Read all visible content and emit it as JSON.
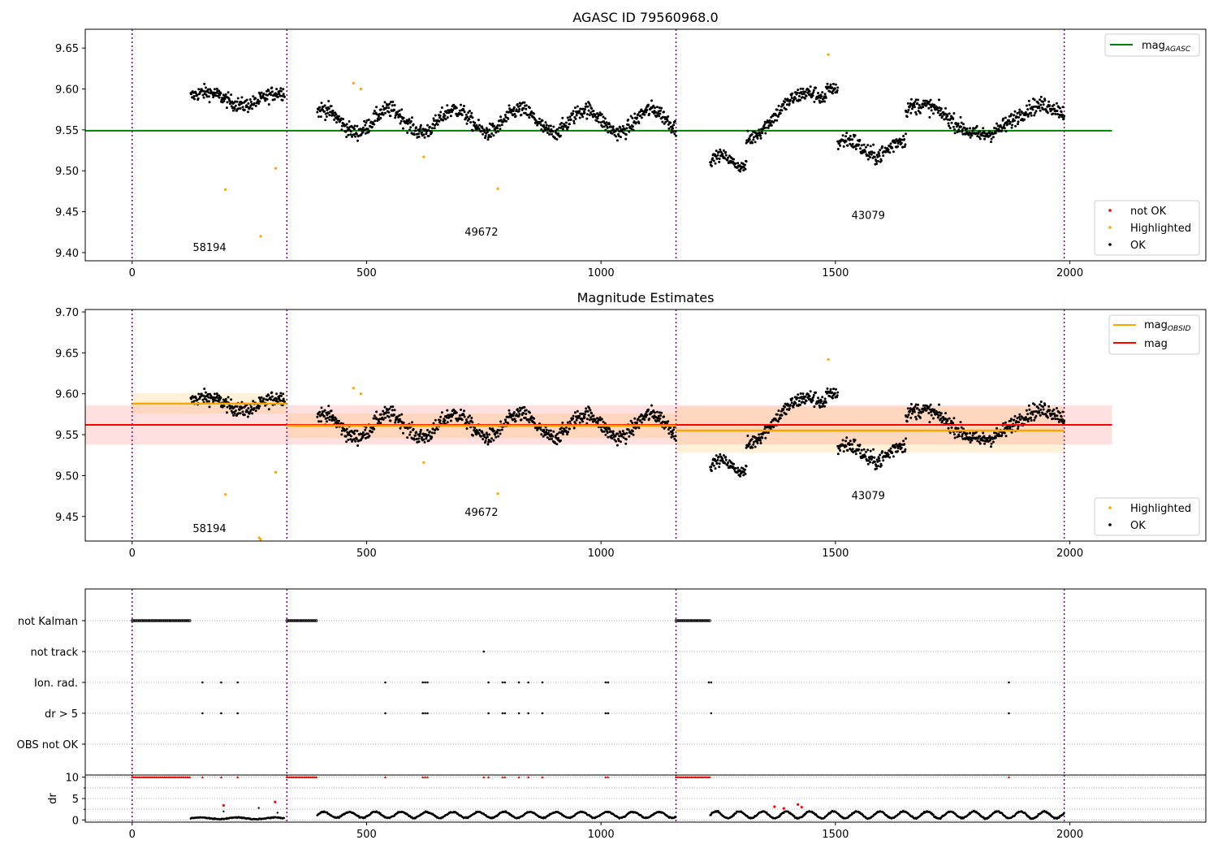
{
  "chart_data": [
    {
      "type": "scatter",
      "title": "AGASC ID 79560968.0",
      "xlim": [
        -100,
        2290
      ],
      "ylim": [
        9.39,
        9.673
      ],
      "x_ticks": [
        0,
        500,
        1000,
        1500,
        2000
      ],
      "x_tick_labels": [
        "0",
        "500",
        "1000",
        "1500",
        "2000"
      ],
      "y_ticks": [
        9.4,
        9.45,
        9.5,
        9.55,
        9.6,
        9.65
      ],
      "y_tick_labels": [
        "9.40",
        "9.45",
        "9.50",
        "9.55",
        "9.60",
        "9.65"
      ],
      "obsid_boundaries": [
        0,
        330,
        1160,
        1988
      ],
      "obsid_labels": [
        {
          "text": "58194",
          "x": 165,
          "y": 9.402
        },
        {
          "text": "49672",
          "x": 745,
          "y": 9.421
        },
        {
          "text": "43079",
          "x": 1570,
          "y": 9.441
        }
      ],
      "lines": [
        {
          "name": "mag_AGASC",
          "y": 9.549,
          "x_range": [
            -100,
            2090
          ],
          "color": "#008000"
        }
      ],
      "ok_segments": [
        {
          "x_start": 125,
          "x_end": 325,
          "base": 9.588,
          "amp": 0.008,
          "period": 160,
          "phase": 0.3,
          "noise": 0.011
        },
        {
          "x_start": 395,
          "x_end": 1160,
          "base": 9.561,
          "amp": 0.014,
          "period": 140,
          "phase": 1.0,
          "noise": 0.012
        },
        {
          "x_start": 1233,
          "x_end": 1310,
          "base": 9.512,
          "amp": 0.007,
          "period": 90,
          "phase": 0.0,
          "noise": 0.008
        },
        {
          "x_start": 1310,
          "x_end": 1480,
          "base": 9.565,
          "amp": 0.03,
          "period": 300,
          "phase": -1.2,
          "noise": 0.012
        },
        {
          "x_start": 1480,
          "x_end": 1505,
          "base": 9.6,
          "amp": 0.0,
          "period": 100,
          "phase": 0.0,
          "noise": 0.008
        },
        {
          "x_start": 1505,
          "x_end": 1650,
          "base": 9.528,
          "amp": 0.01,
          "period": 120,
          "phase": 0.5,
          "noise": 0.013
        },
        {
          "x_start": 1650,
          "x_end": 1988,
          "base": 9.562,
          "amp": 0.018,
          "period": 260,
          "phase": 0.8,
          "noise": 0.012
        }
      ],
      "highlighted_points": [
        [
          199,
          9.477
        ],
        [
          274,
          9.42
        ],
        [
          306,
          9.503
        ],
        [
          472,
          9.607
        ],
        [
          488,
          9.6
        ],
        [
          622,
          9.517
        ],
        [
          780,
          9.478
        ],
        [
          1485,
          9.642
        ]
      ],
      "not_ok_points": [],
      "legends": [
        {
          "position": "upper-right",
          "entries": [
            {
              "label": "mag",
              "subscript": "AGASC",
              "kind": "line",
              "color": "#008000"
            }
          ]
        },
        {
          "position": "lower-right",
          "entries": [
            {
              "label": "not OK",
              "kind": "marker",
              "color": "#ff0000"
            },
            {
              "label": "Highlighted",
              "kind": "marker",
              "color": "#ffa500"
            },
            {
              "label": "OK",
              "kind": "marker",
              "color": "#000000"
            }
          ]
        }
      ]
    },
    {
      "type": "scatter",
      "title": "Magnitude Estimates",
      "xlim": [
        -100,
        2290
      ],
      "ylim": [
        9.42,
        9.703
      ],
      "x_ticks": [
        0,
        500,
        1000,
        1500,
        2000
      ],
      "x_tick_labels": [
        "0",
        "500",
        "1000",
        "1500",
        "2000"
      ],
      "y_ticks": [
        9.45,
        9.5,
        9.55,
        9.6,
        9.65,
        9.7
      ],
      "y_tick_labels": [
        "9.45",
        "9.50",
        "9.55",
        "9.60",
        "9.65",
        "9.70"
      ],
      "obsid_boundaries": [
        0,
        330,
        1160,
        1988
      ],
      "obsid_labels": [
        {
          "text": "58194",
          "x": 165,
          "y": 9.431
        },
        {
          "text": "49672",
          "x": 745,
          "y": 9.451
        },
        {
          "text": "43079",
          "x": 1570,
          "y": 9.471
        }
      ],
      "mag_line": {
        "name": "mag",
        "y": 9.562,
        "band": [
          9.538,
          9.586
        ],
        "x_range": [
          -100,
          2090
        ],
        "color": "#ff0000"
      },
      "obsid_mag": [
        {
          "x_range": [
            0,
            330
          ],
          "y": 9.588,
          "band": [
            9.576,
            9.601
          ]
        },
        {
          "x_range": [
            330,
            1160
          ],
          "y": 9.561,
          "band": [
            9.546,
            9.576
          ]
        },
        {
          "x_range": [
            1160,
            1988
          ],
          "y": 9.555,
          "band": [
            9.528,
            9.584
          ]
        }
      ],
      "obsid_mag_color": "#ffa500",
      "highlighted_points": [
        [
          199,
          9.477
        ],
        [
          271,
          9.424
        ],
        [
          274,
          9.422
        ],
        [
          306,
          9.504
        ],
        [
          472,
          9.607
        ],
        [
          488,
          9.6
        ],
        [
          622,
          9.516
        ],
        [
          780,
          9.478
        ],
        [
          1485,
          9.642
        ]
      ],
      "legends": [
        {
          "position": "upper-right",
          "entries": [
            {
              "label": "mag",
              "subscript": "OBSID",
              "kind": "line",
              "color": "#ffa500"
            },
            {
              "label": "mag",
              "subscript": "",
              "kind": "line",
              "color": "#ff0000"
            }
          ]
        },
        {
          "position": "lower-right",
          "entries": [
            {
              "label": "Highlighted",
              "kind": "marker",
              "color": "#ffa500"
            },
            {
              "label": "OK",
              "kind": "marker",
              "color": "#000000"
            }
          ]
        }
      ]
    },
    {
      "type": "scatter",
      "title": "",
      "xlim": [
        -100,
        2290
      ],
      "categories": [
        "not Kalman",
        "not track",
        "Ion. rad.",
        "dr > 5",
        "OBS not OK"
      ],
      "flag_runs": [
        {
          "category": "not Kalman",
          "x_start": 0,
          "x_end": 125,
          "step": 3
        },
        {
          "category": "not Kalman",
          "x_start": 330,
          "x_end": 395,
          "step": 3
        },
        {
          "category": "not Kalman",
          "x_start": 1160,
          "x_end": 1233,
          "step": 3
        }
      ],
      "flag_points": {
        "not track": [
          750
        ],
        "Ion. rad.": [
          150,
          190,
          225,
          540,
          620,
          625,
          630,
          760,
          790,
          795,
          825,
          845,
          875,
          1010,
          1015,
          1230,
          1235,
          1870
        ],
        "dr > 5": [
          150,
          190,
          225,
          540,
          620,
          625,
          630,
          760,
          790,
          795,
          825,
          845,
          875,
          1010,
          1015,
          1235,
          1870
        ],
        "OBS not OK": []
      },
      "grid": true,
      "obsid_boundaries": [
        0,
        330,
        1160,
        1988
      ]
    },
    {
      "type": "scatter",
      "title": "",
      "ylabel": "dr",
      "xlim": [
        -100,
        2290
      ],
      "ylim": [
        -0.5,
        10.5
      ],
      "x_ticks": [
        0,
        500,
        1000,
        1500,
        2000
      ],
      "x_tick_labels": [
        "0",
        "500",
        "1000",
        "1500",
        "2000"
      ],
      "y_ticks": [
        0,
        5,
        10
      ],
      "y_tick_labels": [
        "0",
        "5",
        "10"
      ],
      "dr_segments": [
        {
          "x_start": 125,
          "x_end": 325,
          "base": 0.4,
          "amp": 0.2,
          "period": 80,
          "noise": 0.1
        },
        {
          "x_start": 395,
          "x_end": 1160,
          "base": 1.2,
          "amp": 0.7,
          "period": 55,
          "noise": 0.15
        },
        {
          "x_start": 1233,
          "x_end": 1988,
          "base": 1.2,
          "amp": 0.8,
          "period": 50,
          "noise": 0.15
        }
      ],
      "dr_clipped_runs": [
        {
          "x_start": 0,
          "x_end": 125,
          "step": 3
        },
        {
          "x_start": 330,
          "x_end": 395,
          "step": 3
        },
        {
          "x_start": 1160,
          "x_end": 1233,
          "step": 3
        }
      ],
      "dr_clipped_points": [
        150,
        190,
        225,
        540,
        620,
        625,
        630,
        750,
        760,
        790,
        795,
        825,
        845,
        875,
        1010,
        1015,
        1870
      ],
      "dr_red_points": [
        [
          195,
          3.4
        ],
        [
          305,
          4.2
        ],
        [
          1370,
          3.1
        ],
        [
          1390,
          2.7
        ],
        [
          1420,
          3.6
        ],
        [
          1428,
          3.0
        ]
      ],
      "dr_misc_points": [
        [
          195,
          2.0
        ],
        [
          270,
          2.8
        ],
        [
          310,
          1.7
        ]
      ],
      "grid": true,
      "obsid_boundaries": [
        0,
        330,
        1160,
        1988
      ]
    }
  ],
  "colors": {
    "ok": "#000000",
    "highlighted": "#ffa500",
    "not_ok": "#ff0000",
    "boundary": "#800080",
    "agasc": "#008000",
    "mag": "#ff0000",
    "mag_obsid": "#ffa500"
  }
}
